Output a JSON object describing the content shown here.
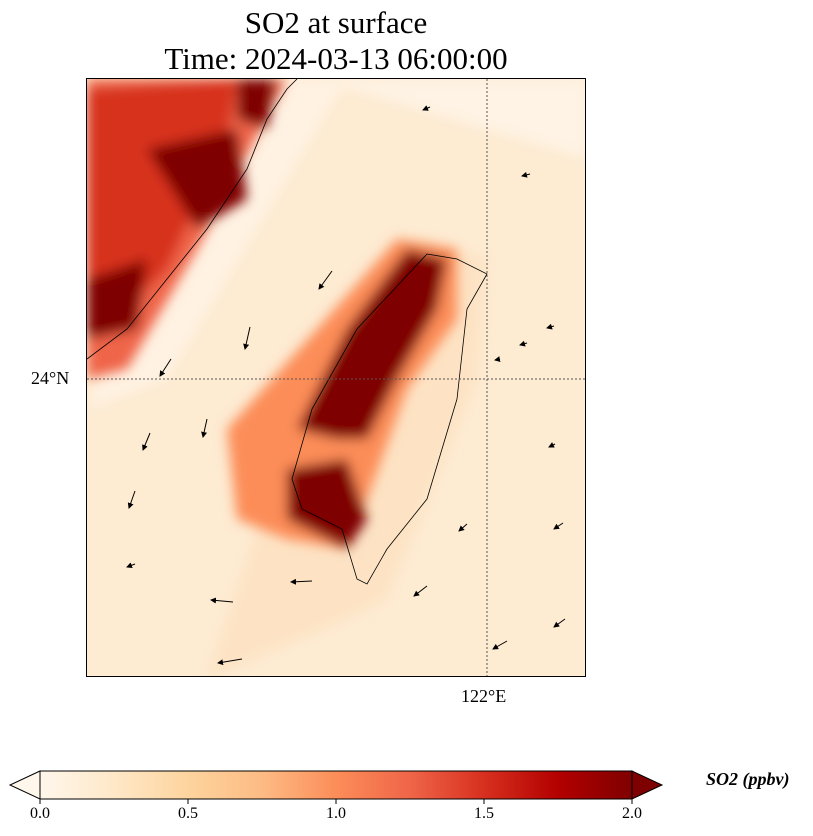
{
  "title": {
    "line1": "SO2 at surface",
    "line2": "Time: 2024-03-13 06:00:00"
  },
  "axes": {
    "lat_label": "24°N",
    "lon_label": "122°E"
  },
  "colorbar": {
    "label": "SO2 (ppbv)",
    "ticks": [
      "0.0",
      "0.5",
      "1.0",
      "1.5",
      "2.0"
    ],
    "range": [
      0,
      2
    ],
    "colormap": "OrRd",
    "extend": "both",
    "colors": [
      "#fff7ec",
      "#fee8c8",
      "#fdd49e",
      "#fdbb84",
      "#fc8d59",
      "#ef6548",
      "#d7301f",
      "#b30000",
      "#7f0000"
    ]
  }
}
